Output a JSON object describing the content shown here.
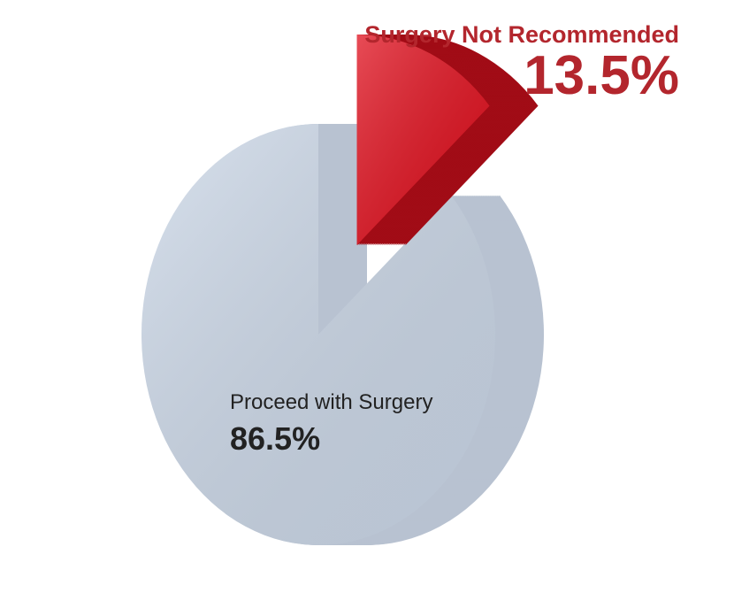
{
  "chart_data": {
    "type": "pie",
    "categories": [
      "Surgery Not Recommended",
      "Proceed with Surgery"
    ],
    "values": [
      13.5,
      86.5
    ],
    "value_labels": [
      "13.5%",
      "86.5%"
    ],
    "colors": [
      "#e0101e",
      "#ccd8e8"
    ],
    "label_colors": [
      "#b3262d",
      "#222222"
    ],
    "exploded": [
      true,
      false
    ]
  }
}
